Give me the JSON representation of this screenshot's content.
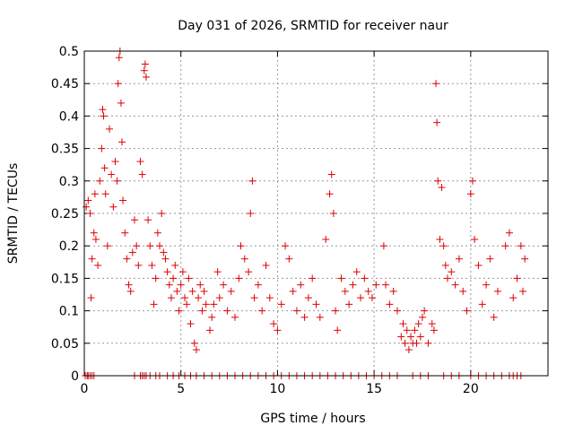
{
  "chart_data": {
    "type": "scatter",
    "title": "Day 031 of 2026, SRMTID for receiver naur",
    "xlabel": "GPS time / hours",
    "ylabel": "SRMTID / TECUs",
    "xlim": [
      0,
      24
    ],
    "ylim": [
      0,
      0.5
    ],
    "x_ticks": [
      0,
      5,
      10,
      15,
      20
    ],
    "x_tick_labels": [
      "0",
      "5",
      "10",
      "15",
      "20"
    ],
    "y_ticks": [
      0,
      0.05,
      0.1,
      0.15,
      0.2,
      0.25,
      0.3,
      0.35,
      0.4,
      0.45,
      0.5
    ],
    "y_tick_labels": [
      "0",
      "0.05",
      "0.1",
      "0.15",
      "0.2",
      "0.25",
      "0.3",
      "0.35",
      "0.4",
      "0.45",
      "0.5"
    ],
    "grid": true,
    "marker": "+",
    "color": "#dd0000",
    "series": [
      {
        "name": "SRMTID",
        "points": [
          [
            0.1,
            0.26
          ],
          [
            0.2,
            0.27
          ],
          [
            0.3,
            0.25
          ],
          [
            0.35,
            0.12
          ],
          [
            0.4,
            0.18
          ],
          [
            0.5,
            0.22
          ],
          [
            0.55,
            0.28
          ],
          [
            0.6,
            0.21
          ],
          [
            0.7,
            0.17
          ],
          [
            0.8,
            0.3
          ],
          [
            0.9,
            0.35
          ],
          [
            0.95,
            0.41
          ],
          [
            1.0,
            0.4
          ],
          [
            1.05,
            0.32
          ],
          [
            1.1,
            0.28
          ],
          [
            1.2,
            0.2
          ],
          [
            1.3,
            0.38
          ],
          [
            1.4,
            0.31
          ],
          [
            1.5,
            0.26
          ],
          [
            1.6,
            0.33
          ],
          [
            1.7,
            0.3
          ],
          [
            1.75,
            0.45
          ],
          [
            1.8,
            0.49
          ],
          [
            1.85,
            0.5
          ],
          [
            1.9,
            0.42
          ],
          [
            1.95,
            0.36
          ],
          [
            2.0,
            0.27
          ],
          [
            2.1,
            0.22
          ],
          [
            2.2,
            0.18
          ],
          [
            2.3,
            0.14
          ],
          [
            2.4,
            0.13
          ],
          [
            2.5,
            0.19
          ],
          [
            2.6,
            0.24
          ],
          [
            2.7,
            0.2
          ],
          [
            2.8,
            0.17
          ],
          [
            2.9,
            0.33
          ],
          [
            3.0,
            0.31
          ],
          [
            3.1,
            0.47
          ],
          [
            3.15,
            0.48
          ],
          [
            3.2,
            0.46
          ],
          [
            3.3,
            0.24
          ],
          [
            3.4,
            0.2
          ],
          [
            3.5,
            0.17
          ],
          [
            3.6,
            0.11
          ],
          [
            3.7,
            0.15
          ],
          [
            3.8,
            0.22
          ],
          [
            3.9,
            0.2
          ],
          [
            4.0,
            0.25
          ],
          [
            4.1,
            0.19
          ],
          [
            4.2,
            0.18
          ],
          [
            4.3,
            0.16
          ],
          [
            4.4,
            0.14
          ],
          [
            4.5,
            0.12
          ],
          [
            4.6,
            0.15
          ],
          [
            4.7,
            0.17
          ],
          [
            4.8,
            0.13
          ],
          [
            4.9,
            0.1
          ],
          [
            5.0,
            0.14
          ],
          [
            5.1,
            0.16
          ],
          [
            5.2,
            0.12
          ],
          [
            5.3,
            0.11
          ],
          [
            5.4,
            0.15
          ],
          [
            5.5,
            0.08
          ],
          [
            5.6,
            0.13
          ],
          [
            5.7,
            0.05
          ],
          [
            5.8,
            0.04
          ],
          [
            5.9,
            0.12
          ],
          [
            6.0,
            0.14
          ],
          [
            6.1,
            0.1
          ],
          [
            6.2,
            0.13
          ],
          [
            6.3,
            0.11
          ],
          [
            6.5,
            0.07
          ],
          [
            6.6,
            0.09
          ],
          [
            6.7,
            0.11
          ],
          [
            6.9,
            0.16
          ],
          [
            7.0,
            0.12
          ],
          [
            7.2,
            0.14
          ],
          [
            7.4,
            0.1
          ],
          [
            7.6,
            0.13
          ],
          [
            7.8,
            0.09
          ],
          [
            8.0,
            0.15
          ],
          [
            8.1,
            0.2
          ],
          [
            8.3,
            0.18
          ],
          [
            8.5,
            0.16
          ],
          [
            8.6,
            0.25
          ],
          [
            8.7,
            0.3
          ],
          [
            8.8,
            0.12
          ],
          [
            9.0,
            0.14
          ],
          [
            9.2,
            0.1
          ],
          [
            9.4,
            0.17
          ],
          [
            9.6,
            0.12
          ],
          [
            9.8,
            0.08
          ],
          [
            10.0,
            0.07
          ],
          [
            10.2,
            0.11
          ],
          [
            10.4,
            0.2
          ],
          [
            10.6,
            0.18
          ],
          [
            10.8,
            0.13
          ],
          [
            11.0,
            0.1
          ],
          [
            11.2,
            0.14
          ],
          [
            11.4,
            0.09
          ],
          [
            11.6,
            0.12
          ],
          [
            11.8,
            0.15
          ],
          [
            12.0,
            0.11
          ],
          [
            12.2,
            0.09
          ],
          [
            12.5,
            0.21
          ],
          [
            12.7,
            0.28
          ],
          [
            12.8,
            0.31
          ],
          [
            12.9,
            0.25
          ],
          [
            13.0,
            0.1
          ],
          [
            13.1,
            0.07
          ],
          [
            13.3,
            0.15
          ],
          [
            13.5,
            0.13
          ],
          [
            13.7,
            0.11
          ],
          [
            13.9,
            0.14
          ],
          [
            14.1,
            0.16
          ],
          [
            14.3,
            0.12
          ],
          [
            14.5,
            0.15
          ],
          [
            14.7,
            0.13
          ],
          [
            14.9,
            0.12
          ],
          [
            15.1,
            0.14
          ],
          [
            15.5,
            0.2
          ],
          [
            15.6,
            0.14
          ],
          [
            15.8,
            0.11
          ],
          [
            16.0,
            0.13
          ],
          [
            16.2,
            0.1
          ],
          [
            16.4,
            0.06
          ],
          [
            16.5,
            0.08
          ],
          [
            16.6,
            0.05
          ],
          [
            16.7,
            0.07
          ],
          [
            16.8,
            0.04
          ],
          [
            16.9,
            0.06
          ],
          [
            17.0,
            0.05
          ],
          [
            17.1,
            0.07
          ],
          [
            17.2,
            0.05
          ],
          [
            17.3,
            0.08
          ],
          [
            17.4,
            0.06
          ],
          [
            17.5,
            0.09
          ],
          [
            17.6,
            0.1
          ],
          [
            17.8,
            0.05
          ],
          [
            18.0,
            0.08
          ],
          [
            18.1,
            0.07
          ],
          [
            18.2,
            0.45
          ],
          [
            18.25,
            0.39
          ],
          [
            18.3,
            0.3
          ],
          [
            18.4,
            0.21
          ],
          [
            18.5,
            0.29
          ],
          [
            18.6,
            0.2
          ],
          [
            18.7,
            0.17
          ],
          [
            18.8,
            0.15
          ],
          [
            19.0,
            0.16
          ],
          [
            19.2,
            0.14
          ],
          [
            19.4,
            0.18
          ],
          [
            19.6,
            0.13
          ],
          [
            19.8,
            0.1
          ],
          [
            20.0,
            0.28
          ],
          [
            20.1,
            0.3
          ],
          [
            20.2,
            0.21
          ],
          [
            20.4,
            0.17
          ],
          [
            20.6,
            0.11
          ],
          [
            20.8,
            0.14
          ],
          [
            21.0,
            0.18
          ],
          [
            21.2,
            0.09
          ],
          [
            21.4,
            0.13
          ],
          [
            21.8,
            0.2
          ],
          [
            22.0,
            0.22
          ],
          [
            22.2,
            0.12
          ],
          [
            22.4,
            0.15
          ],
          [
            22.6,
            0.2
          ],
          [
            22.8,
            0.18
          ],
          [
            22.7,
            0.13
          ]
        ],
        "zero_points": [
          0.05,
          0.15,
          0.2,
          0.3,
          0.4,
          0.5,
          2.6,
          2.9,
          3.0,
          3.1,
          3.2,
          3.4,
          3.7,
          3.9,
          4.3,
          4.6,
          4.9,
          5.2,
          5.5,
          5.8,
          6.2,
          6.6,
          7.0,
          7.4,
          7.8,
          8.2,
          8.6,
          9.0,
          9.4,
          9.8,
          10.2,
          10.6,
          11.0,
          11.4,
          11.8,
          12.2,
          12.6,
          13.0,
          13.4,
          13.8,
          14.2,
          14.6,
          15.0,
          15.4,
          15.8,
          16.2,
          17.0,
          17.4,
          17.8,
          18.6,
          19.0,
          19.4,
          20.0,
          20.4,
          20.8,
          21.2,
          21.6,
          22.0,
          22.2,
          22.4,
          22.6
        ]
      }
    ]
  }
}
